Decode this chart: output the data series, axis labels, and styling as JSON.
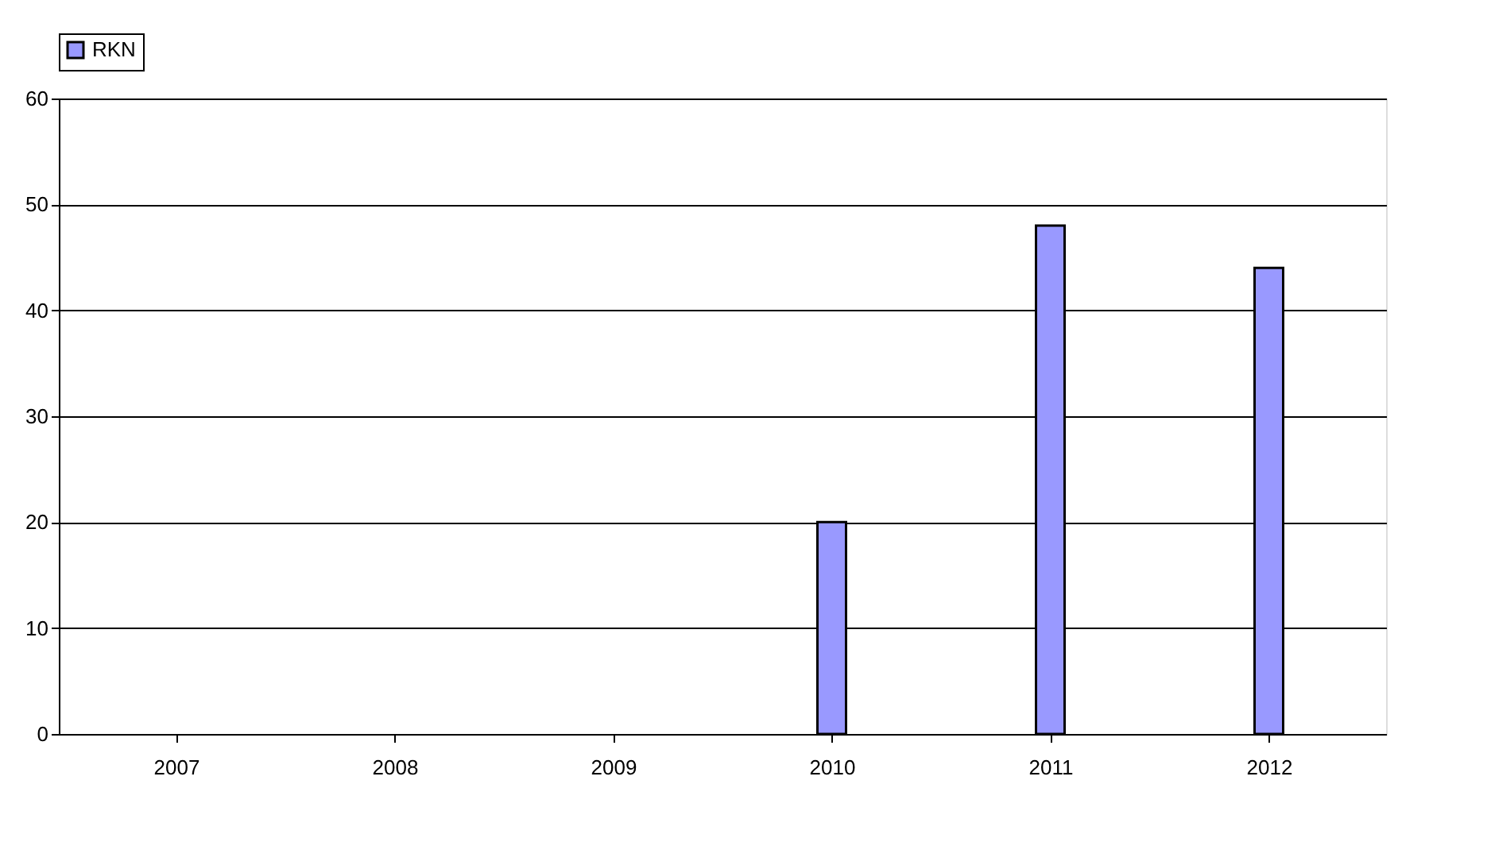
{
  "chart_data": {
    "type": "bar",
    "categories": [
      "2007",
      "2008",
      "2009",
      "2010",
      "2011",
      "2012"
    ],
    "series": [
      {
        "name": "RKN",
        "color": "#9999ff",
        "values": [
          null,
          null,
          null,
          20,
          48,
          44
        ]
      }
    ],
    "ylim": [
      0,
      60
    ],
    "yticks": [
      0,
      10,
      20,
      30,
      40,
      50,
      60
    ],
    "grid": "y",
    "legend": "top"
  }
}
